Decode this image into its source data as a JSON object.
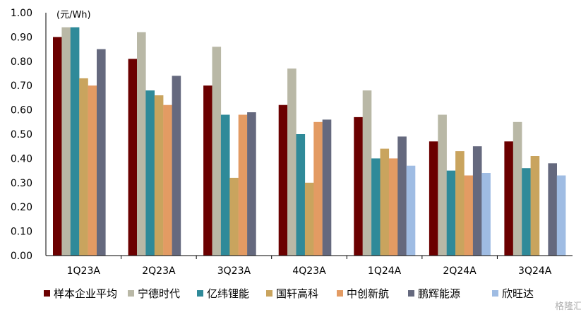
{
  "chart_data": {
    "type": "bar",
    "unit_label": "(元/Wh)",
    "categories": [
      "1Q23A",
      "2Q23A",
      "3Q23A",
      "4Q23A",
      "1Q24A",
      "2Q24A",
      "3Q24A"
    ],
    "ylim": [
      0,
      1.0
    ],
    "yticks": [
      "0.00",
      "0.10",
      "0.20",
      "0.30",
      "0.40",
      "0.50",
      "0.60",
      "0.70",
      "0.80",
      "0.90",
      "1.00"
    ],
    "grid": false,
    "legend_position": "bottom",
    "series": [
      {
        "name": "样本企业平均",
        "color": "#6b0000",
        "values": [
          0.9,
          0.81,
          0.7,
          0.62,
          0.57,
          0.47,
          0.47
        ]
      },
      {
        "name": "宁德时代",
        "color": "#b9b8a6",
        "values": [
          0.94,
          0.92,
          0.86,
          0.77,
          0.68,
          0.58,
          0.55
        ]
      },
      {
        "name": "亿纬锂能",
        "color": "#2f8a99",
        "values": [
          0.94,
          0.68,
          0.58,
          0.5,
          0.4,
          0.35,
          0.36
        ]
      },
      {
        "name": "国轩高科",
        "color": "#c9a45e",
        "values": [
          0.73,
          0.66,
          0.32,
          0.3,
          0.44,
          0.43,
          0.41
        ]
      },
      {
        "name": "中创新航",
        "color": "#e39b63",
        "values": [
          0.7,
          0.62,
          0.58,
          0.55,
          0.4,
          0.33,
          null
        ]
      },
      {
        "name": "鹏辉能源",
        "color": "#65697e",
        "values": [
          0.85,
          0.74,
          0.59,
          0.56,
          0.49,
          0.45,
          0.38
        ]
      },
      {
        "name": "欣旺达",
        "color": "#9fbce3",
        "values": [
          null,
          null,
          null,
          null,
          0.37,
          0.34,
          0.33
        ]
      }
    ]
  },
  "watermark": "格隆汇"
}
